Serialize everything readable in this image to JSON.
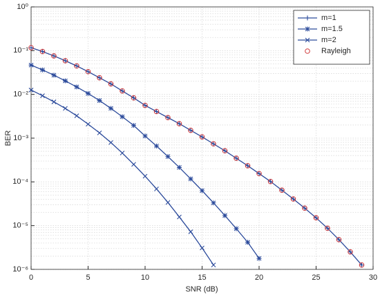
{
  "chart_data": {
    "type": "line",
    "xlabel": "SNR (dB)",
    "ylabel": "BER",
    "x": [
      0,
      1,
      2,
      3,
      4,
      5,
      6,
      7,
      8,
      9,
      10,
      11,
      12,
      13,
      14,
      15,
      16,
      17,
      18,
      19,
      20,
      21,
      22,
      23,
      24,
      25,
      26,
      27,
      28,
      29
    ],
    "xlim": [
      0,
      30
    ],
    "xticks": [
      0,
      5,
      10,
      15,
      20,
      25,
      30
    ],
    "ylim": [
      1e-06,
      1
    ],
    "yscale": "log",
    "yticks": [
      {
        "value": 1e-06,
        "label": "10⁻⁶"
      },
      {
        "value": 1e-05,
        "label": "10⁻⁵"
      },
      {
        "value": 0.0001,
        "label": "10⁻⁴"
      },
      {
        "value": 0.001,
        "label": "10⁻³"
      },
      {
        "value": 0.01,
        "label": "10⁻²"
      },
      {
        "value": 0.1,
        "label": "10⁻¹"
      },
      {
        "value": 1,
        "label": "10⁰"
      }
    ],
    "grid": true,
    "legend": "upper right",
    "series": [
      {
        "name": "m=1",
        "color": "#2b4a9b",
        "marker": "plus",
        "linestyle": "solid",
        "values": [
          0.117,
          0.0955,
          0.0759,
          0.0589,
          0.0447,
          0.0331,
          0.024,
          0.0174,
          0.012,
          0.00832,
          0.00562,
          0.00407,
          0.00295,
          0.00214,
          0.00151,
          0.00107,
          0.000741,
          0.000513,
          0.000347,
          0.000234,
          0.000155,
          0.000102,
          6.46e-05,
          4.07e-05,
          2.51e-05,
          1.51e-05,
          8.71e-06,
          4.79e-06,
          2.51e-06,
          1.26e-06
        ]
      },
      {
        "name": "m=1.5",
        "color": "#2b4a9b",
        "marker": "star",
        "linestyle": "solid",
        "values": [
          0.0468,
          0.0363,
          0.0275,
          0.0204,
          0.0148,
          0.0105,
          0.00724,
          0.00479,
          0.00309,
          0.00195,
          0.00112,
          0.000661,
          0.00038,
          0.000214,
          0.000117,
          6.31e-05,
          3.31e-05,
          1.7e-05,
          8.51e-06,
          4.17e-06,
          1.78e-06,
          null,
          null,
          null,
          null,
          null,
          null,
          null,
          null,
          null
        ]
      },
      {
        "name": "m=2",
        "color": "#2b4a9b",
        "marker": "x",
        "linestyle": "solid",
        "values": [
          0.0126,
          0.00933,
          0.00676,
          0.00479,
          0.00324,
          0.00209,
          0.00132,
          0.000794,
          0.000457,
          0.000251,
          0.000135,
          6.92e-05,
          3.39e-05,
          1.58e-05,
          7.24e-06,
          3.09e-06,
          1.26e-06,
          null,
          null,
          null,
          null,
          null,
          null,
          null,
          null,
          null,
          null,
          null,
          null,
          null
        ]
      },
      {
        "name": "Rayleigh",
        "color": "#d0393b",
        "marker": "circle",
        "linestyle": "none",
        "values": [
          0.117,
          0.0955,
          0.0759,
          0.0589,
          0.0447,
          0.0331,
          0.024,
          0.0174,
          0.012,
          0.00832,
          0.00562,
          0.00407,
          0.00295,
          0.00214,
          0.00151,
          0.00107,
          0.000741,
          0.000513,
          0.000347,
          0.000234,
          0.000155,
          0.000102,
          6.46e-05,
          4.07e-05,
          2.51e-05,
          1.51e-05,
          8.71e-06,
          4.79e-06,
          2.51e-06,
          1.26e-06
        ]
      }
    ]
  }
}
